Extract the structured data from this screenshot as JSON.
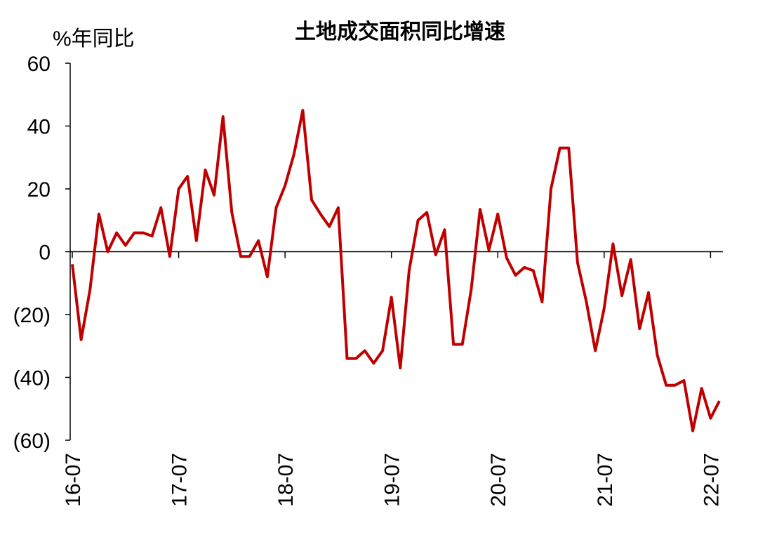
{
  "chart_data": {
    "type": "line",
    "title": "土地成交面积同比增速",
    "y_label": "%年同比",
    "categories": [
      "16-07",
      null,
      null,
      null,
      null,
      null,
      null,
      null,
      null,
      null,
      null,
      null,
      "17-07",
      null,
      null,
      null,
      null,
      null,
      null,
      null,
      null,
      null,
      null,
      null,
      "18-07",
      null,
      null,
      null,
      null,
      null,
      null,
      null,
      null,
      null,
      null,
      null,
      "19-07",
      null,
      null,
      null,
      null,
      null,
      null,
      null,
      null,
      null,
      null,
      null,
      "20-07",
      null,
      null,
      null,
      null,
      null,
      null,
      null,
      null,
      null,
      null,
      null,
      "21-07",
      null,
      null,
      null,
      null,
      null,
      null,
      null,
      null,
      null,
      null,
      null,
      "22-07",
      null
    ],
    "series": [
      {
        "name": "土地成交面积同比增速",
        "color": "#c00000",
        "values": [
          -4,
          -28,
          -12,
          12,
          0,
          6,
          2,
          6,
          6,
          5,
          14,
          -1.5,
          20,
          24,
          3.5,
          26,
          18,
          43,
          12.5,
          -1.5,
          -1.5,
          3.5,
          -8,
          14,
          21,
          31,
          45,
          16.5,
          12,
          8,
          14,
          -34,
          -34,
          -31.5,
          -35.5,
          -31.5,
          -14.5,
          -37,
          -6,
          10,
          12.5,
          -1,
          7,
          -29.5,
          -29.5,
          -12,
          13.5,
          0.5,
          12,
          -2,
          -7.5,
          -5,
          -6,
          -16,
          20,
          33,
          33,
          -3.5,
          -16,
          -31.5,
          -18,
          2.5,
          -14,
          -2.5,
          -24.5,
          -13,
          -33,
          -42.5,
          -42.5,
          -41,
          -57,
          -43.5,
          -53,
          -47.5
        ]
      }
    ],
    "ylim": [
      -60,
      60
    ],
    "yticks": [
      {
        "value": -60,
        "label": "(60)"
      },
      {
        "value": -40,
        "label": "(40)"
      },
      {
        "value": -20,
        "label": "(20)"
      },
      0,
      20,
      40,
      60
    ],
    "grid": false
  }
}
